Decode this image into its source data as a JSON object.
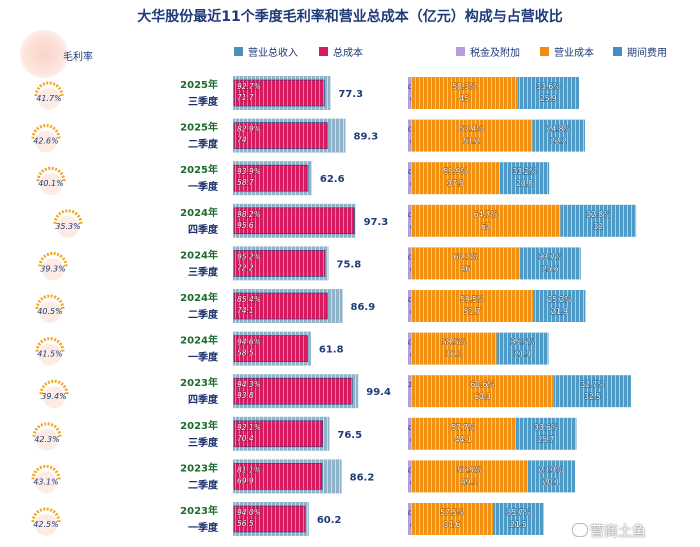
{
  "title": "大华股份最近11个季度毛利率和营业总成本（亿元）构成与占营收比",
  "header": {
    "margin_label": "毛利率"
  },
  "legend_left": [
    {
      "label": "营业总收入",
      "color": "#4a90b8"
    },
    {
      "label": "总成本",
      "color": "#d81b60"
    }
  ],
  "legend_right": [
    {
      "label": "税金及附加",
      "color": "#b39ddb"
    },
    {
      "label": "营业成本",
      "color": "#f28c0f"
    },
    {
      "label": "期间费用",
      "color": "#3f8fc4"
    }
  ],
  "watermark": "营商土鱼",
  "chart_data": {
    "type": "bar",
    "title": "大华股份最近11个季度毛利率和营业总成本（亿元）构成与占营收比",
    "categories": [
      {
        "year": "2025年",
        "quarter": "三季度"
      },
      {
        "year": "2025年",
        "quarter": "二季度"
      },
      {
        "year": "2025年",
        "quarter": "一季度"
      },
      {
        "year": "2024年",
        "quarter": "四季度"
      },
      {
        "year": "2024年",
        "quarter": "三季度"
      },
      {
        "year": "2024年",
        "quarter": "二季度"
      },
      {
        "year": "2024年",
        "quarter": "一季度"
      },
      {
        "year": "2023年",
        "quarter": "四季度"
      },
      {
        "year": "2023年",
        "quarter": "三季度"
      },
      {
        "year": "2023年",
        "quarter": "二季度"
      },
      {
        "year": "2023年",
        "quarter": "一季度"
      }
    ],
    "gross_margin": [
      "41.7%",
      "42.6%",
      "40.1%",
      "35.3%",
      "39.3%",
      "40.5%",
      "41.5%",
      "39.4%",
      "42.3%",
      "43.1%",
      "42.5%"
    ],
    "revenue": [
      77.3,
      89.3,
      62.6,
      97.3,
      75.8,
      86.9,
      61.8,
      99.4,
      76.5,
      86.2,
      60.2
    ],
    "total_cost": [
      71.7,
      74.0,
      58.7,
      95.6,
      72.2,
      74.1,
      58.5,
      93.8,
      70.4,
      69.9,
      56.5
    ],
    "total_cost_ratio": [
      "92.7%",
      "82.9%",
      "93.9%",
      "98.2%",
      "95.2%",
      "85.4%",
      "94.6%",
      "94.3%",
      "92.1%",
      "81.1%",
      "94.0%"
    ],
    "tax": [
      0.7,
      0.7,
      0.5,
      0.6,
      0.6,
      0.6,
      0.4,
      1.0,
      0.6,
      0.7,
      0.5
    ],
    "tax_ratio": [
      "0.9%",
      "0.7%",
      "0.8%",
      "0.6%",
      "0.8%",
      "0.6%",
      "0.7%",
      "1.0%",
      "0.8%",
      "0.8%",
      "0.8%"
    ],
    "operating_cost": [
      45.0,
      51.2,
      37.5,
      63.0,
      46.0,
      51.7,
      36.1,
      60.3,
      44.1,
      49.1,
      34.6
    ],
    "operating_cost_ratio": [
      "58.3%",
      "57.4%",
      "59.9%",
      "64.7%",
      "60.7%",
      "59.5%",
      "58.5%",
      "60.6%",
      "57.7%",
      "56.9%",
      "57.5%"
    ],
    "period_expense": [
      25.9,
      22.2,
      20.8,
      32.0,
      25.6,
      21.9,
      21.9,
      32.5,
      25.7,
      20.1,
      21.5
    ],
    "period_expense_ratio": [
      "33.6%",
      "24.8%",
      "33.2%",
      "32.8%",
      "33.7%",
      "25.2%",
      "35.5%",
      "32.7%",
      "33.6%",
      "23.3%",
      "35.7%"
    ]
  }
}
